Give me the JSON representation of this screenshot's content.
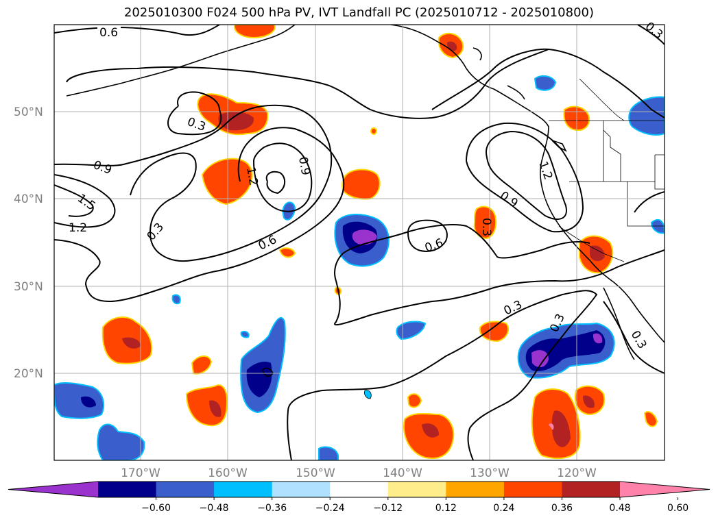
{
  "title": "2025010300 F024 500 hPa PV, IVT Landfall PC (2025010712 - 2025010800)",
  "lon_labels": [
    "170°W",
    "160°W",
    "150°W",
    "140°W",
    "130°W",
    "120°W"
  ],
  "lat_labels": [
    "50°N",
    "40°N",
    "30°N",
    "20°N"
  ],
  "contour_labels": [
    "0.6",
    "0.3",
    "0.9",
    "1.2",
    "0.9",
    "1.5",
    "1.2",
    "0.3",
    "0.6",
    "0.6",
    "0.3",
    "0.9",
    "1.2",
    "0.3",
    "0.3",
    "0.3",
    "0.3"
  ],
  "colorbar": {
    "ticks": [
      "−0.60",
      "−0.48",
      "−0.36",
      "−0.24",
      "−0.12",
      "0.12",
      "0.24",
      "0.36",
      "0.48",
      "0.60"
    ],
    "colors": [
      "#9a32cd",
      "#00008b",
      "#3a5fcd",
      "#00bfff",
      "#b0e2ff",
      "#ffffff",
      "#ffec8b",
      "#ffa500",
      "#ff4500",
      "#b22222",
      "#ff82ab"
    ]
  }
}
